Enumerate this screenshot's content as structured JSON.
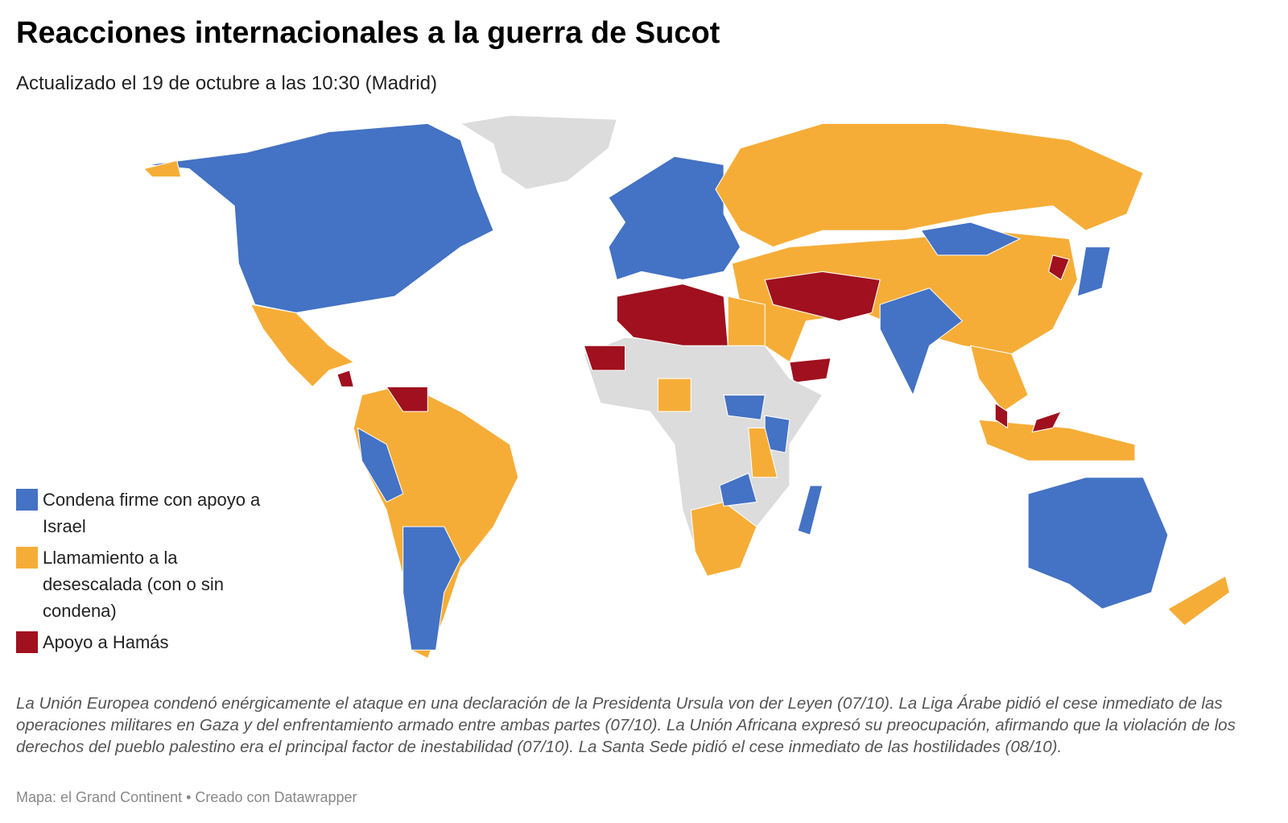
{
  "header": {
    "title": "Reacciones internacionales a la guerra de Sucot",
    "subtitle": "Actualizado el 19 de octubre a las 10:30 (Madrid)"
  },
  "legend": [
    {
      "label": "Condena firme con apoyo a Israel",
      "color": "#4472c4"
    },
    {
      "label": "Llamamiento a la desescalada (con o sin condena)",
      "color": "#f6ad37"
    },
    {
      "label": "Apoyo a Hamás",
      "color": "#a0101e"
    }
  ],
  "note": "La Unión Europea condenó enérgicamente el ataque en una declaración de la Presidenta Ursula von der Leyen (07/10). La Liga Árabe pidió el cese inmediato de las operaciones militares en Gaza y del enfrentamiento armado entre ambas partes (07/10). La Unión Africana expresó su preocupación, afirmando que la violación de los derechos del pueblo palestino era el principal factor de inestabilidad (07/10). La Santa Sede pidió el cese inmediato de las hostilidades (08/10).",
  "source": "Mapa: el Grand Continent • Creado con Datawrapper"
}
